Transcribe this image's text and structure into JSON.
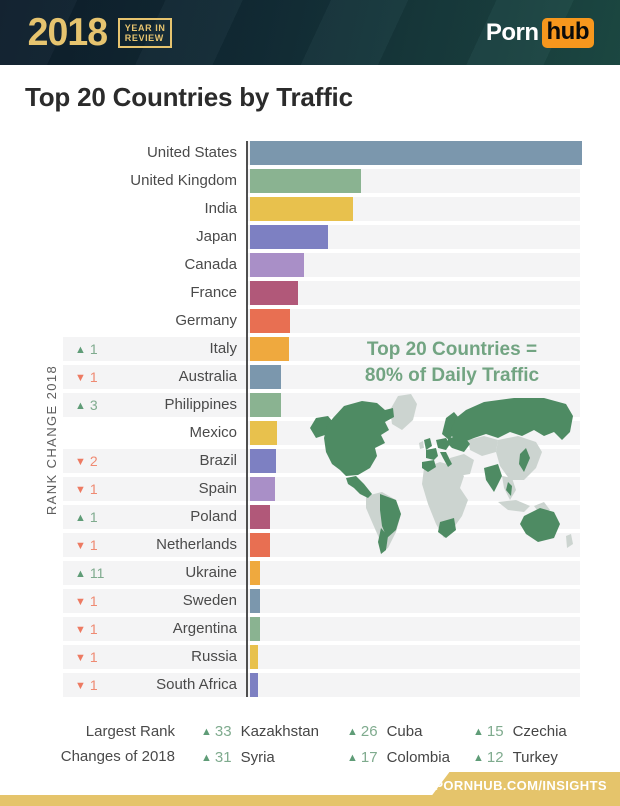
{
  "colors": {
    "accent_gold": "#e6c46f",
    "brand_orange": "#f7971d",
    "footer_gold": "#e5c46b",
    "map_green": "#4e8b63",
    "map_gray": "#ccd4d0",
    "annotation_green": "#72a482",
    "up_green": "#5f9c77",
    "down_red": "#ed7a62",
    "row_band": "#f4f4f5"
  },
  "header": {
    "year": "2018",
    "year_in_review_line1": "YEAR IN",
    "year_in_review_line2": "REVIEW",
    "logo_porn": "Porn",
    "logo_hub": "hub"
  },
  "title": "Top 20 Countries by Traffic",
  "chart_data": {
    "type": "bar",
    "orientation": "horizontal",
    "title": "Top 20 Countries by Traffic",
    "axis_label": "RANK CHANGE 2018",
    "unit": "relative bar length (United States = 100); no numeric axis shown",
    "categories": [
      "United States",
      "United Kingdom",
      "India",
      "Japan",
      "Canada",
      "France",
      "Germany",
      "Italy",
      "Australia",
      "Philippines",
      "Mexico",
      "Brazil",
      "Spain",
      "Poland",
      "Netherlands",
      "Ukraine",
      "Sweden",
      "Argentina",
      "Russia",
      "South Africa"
    ],
    "values": [
      100,
      33.3,
      30.9,
      23.4,
      16.2,
      14.4,
      12.0,
      11.7,
      9.3,
      9.3,
      8.1,
      7.8,
      7.5,
      6.0,
      6.0,
      3.0,
      3.0,
      3.0,
      2.4,
      2.4
    ],
    "rank_changes": [
      null,
      null,
      null,
      null,
      null,
      null,
      null,
      1,
      -1,
      3,
      null,
      -2,
      -1,
      1,
      -1,
      11,
      -1,
      -1,
      -1,
      -1
    ],
    "palette": [
      "#7b97ad",
      "#8ab391",
      "#e8c14d",
      "#7d80c2",
      "#a98fc7",
      "#b15879",
      "#e86f52",
      "#efa93e"
    ],
    "annotation": "Top 20 Countries = 80% of Daily Traffic",
    "legend_position": "none",
    "grid": false
  },
  "annotation": {
    "line1": "Top 20 Countries =",
    "line2": "80% of Daily Traffic"
  },
  "legend": {
    "label_line1": "Largest Rank",
    "label_line2": "Changes of 2018",
    "entries": [
      {
        "change": 33,
        "country": "Kazakhstan"
      },
      {
        "change": 31,
        "country": "Syria"
      },
      {
        "change": 26,
        "country": "Cuba"
      },
      {
        "change": 17,
        "country": "Colombia"
      },
      {
        "change": 15,
        "country": "Czechia"
      },
      {
        "change": 12,
        "country": "Turkey"
      }
    ]
  },
  "footer": {
    "url": "PORNHUB.COM/INSIGHTS"
  }
}
